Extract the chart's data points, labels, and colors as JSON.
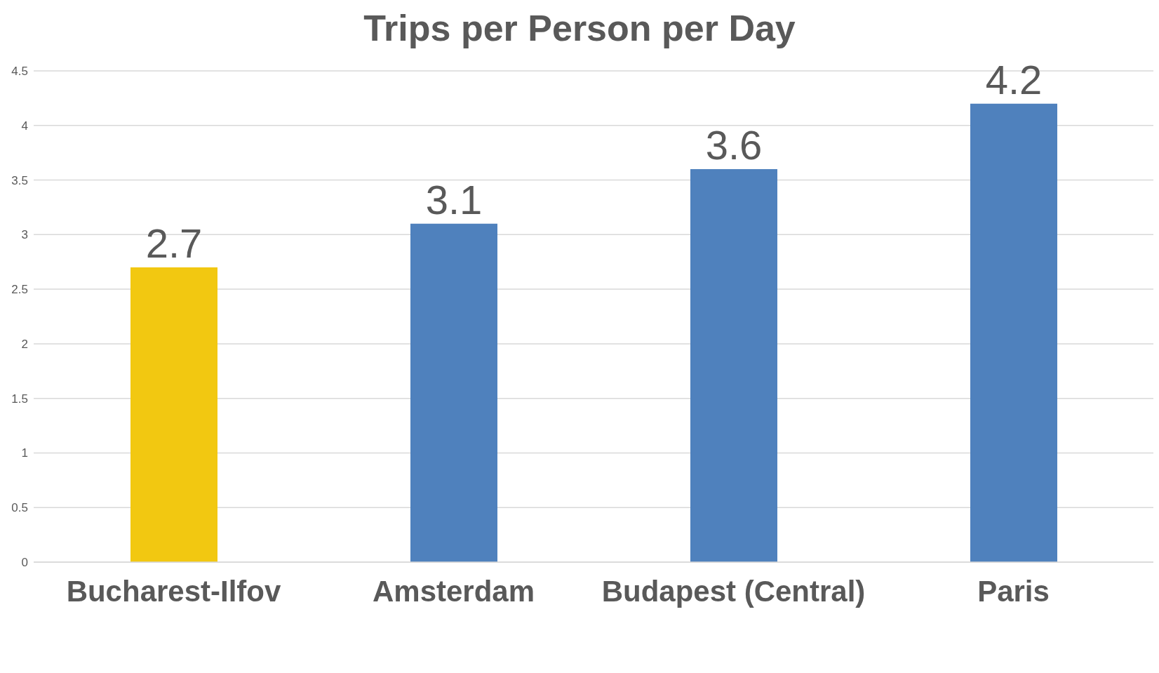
{
  "chart_data": {
    "type": "bar",
    "title": "Trips per Person per Day",
    "categories": [
      "Bucharest-Ilfov",
      "Amsterdam",
      "Budapest (Central)",
      "Paris"
    ],
    "values": [
      2.7,
      3.1,
      3.6,
      4.2
    ],
    "colors": [
      "#f2c811",
      "#4f81bd",
      "#4f81bd",
      "#4f81bd"
    ],
    "ylim": [
      0,
      4.5
    ],
    "yticks": [
      0,
      0.5,
      1,
      1.5,
      2,
      2.5,
      3,
      3.5,
      4,
      4.5
    ],
    "grid": "y",
    "data_labels": true
  }
}
